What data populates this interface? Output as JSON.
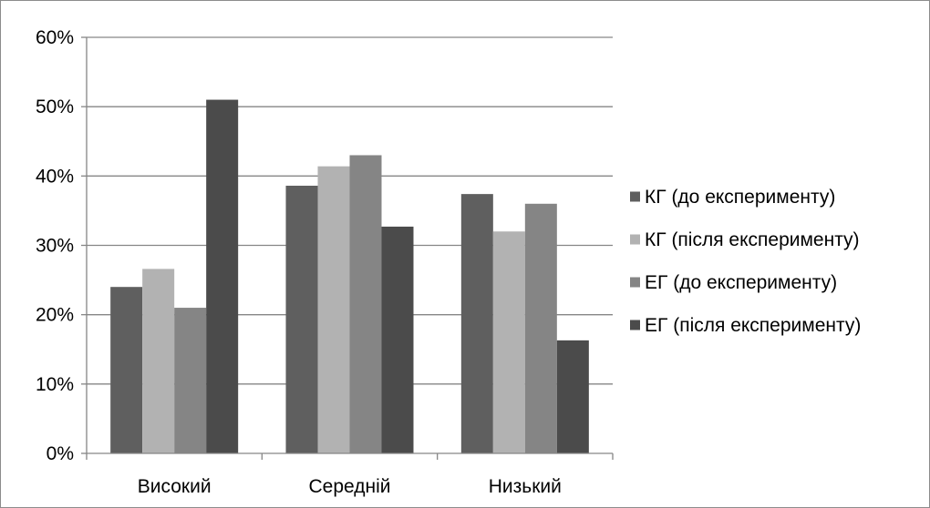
{
  "chart_data": {
    "type": "bar",
    "categories": [
      "Високий",
      "Середній",
      "Низький"
    ],
    "series": [
      {
        "name": "КГ (до експерименту)",
        "values": [
          24,
          38.6,
          37.4
        ],
        "color": "#5f5f5f"
      },
      {
        "name": "КГ (після експерименту)",
        "values": [
          26.6,
          41.4,
          32
        ],
        "color": "#b2b2b2"
      },
      {
        "name": "ЕГ (до експерименту)",
        "values": [
          21,
          43,
          36
        ],
        "color": "#858585"
      },
      {
        "name": "ЕГ (після експерименту)",
        "values": [
          51,
          32.7,
          16.3
        ],
        "color": "#4b4b4b"
      }
    ],
    "ylim": [
      0,
      60
    ],
    "yticks": [
      0,
      10,
      20,
      30,
      40,
      50,
      60
    ],
    "ytick_labels": [
      "0%",
      "10%",
      "20%",
      "30%",
      "40%",
      "50%",
      "60%"
    ],
    "grid": true,
    "legend_position": "right",
    "title": "",
    "xlabel": "",
    "ylabel": ""
  }
}
